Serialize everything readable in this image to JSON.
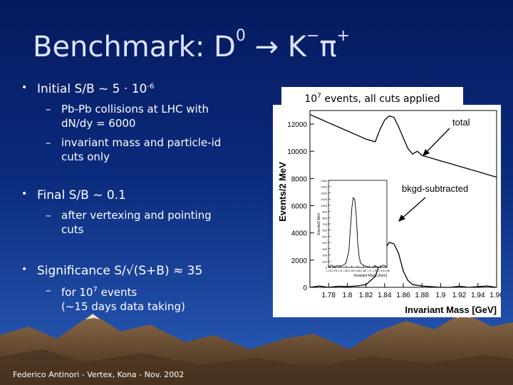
{
  "slide": {
    "title_prefix": "Benchmark: D",
    "title_sup": "0",
    "title_arrow": "→",
    "title_k": "K",
    "title_k_sup": "−",
    "title_pi": "π",
    "title_pi_sup": "+",
    "footer": "Federico Antinori - Vertex, Kona - Nov. 2002"
  },
  "bullets": [
    {
      "text": "Initial S/B ~ 5 · 10",
      "sup": "-6"
    },
    {
      "text": "Final S/B ~ 0.1"
    },
    {
      "text": "Significance S/√(S+B) ≈ 35"
    }
  ],
  "subbullets": {
    "b1_1_line1": "Pb-Pb collisions at LHC with",
    "b1_1_line2": "dN/dy = 6000",
    "b1_2_line1": "invariant mass and particle-id",
    "b1_2_line2": "cuts only",
    "b2_1_line1": "after vertexing and pointing",
    "b2_1_line2": "cuts",
    "b3_1_line1": "for 10",
    "b3_1_sup": "7",
    "b3_1_line1b": " events",
    "b3_1_line2": "(~15 days data taking)"
  },
  "figure": {
    "caption_pre": "10",
    "caption_sup": "7",
    "caption_post": " events, all cuts applied",
    "label_total": "total",
    "label_bkgd": "bkgd-subtracted"
  },
  "chart_data": {
    "type": "line",
    "xlabel": "Invariant Mass [GeV]",
    "ylabel": "Events/2 MeV",
    "xlim": [
      1.76,
      1.96
    ],
    "ylim": [
      0,
      13000
    ],
    "xticks": [
      "1.78",
      "1.8",
      "1.82",
      "1.84",
      "1.86",
      "1.88",
      "1.9",
      "1.92",
      "1.94",
      "1.96"
    ],
    "yticks": [
      "0",
      "2000",
      "4000",
      "6000",
      "8000",
      "10000",
      "12000"
    ],
    "series": [
      {
        "name": "total",
        "x": [
          1.76,
          1.77,
          1.78,
          1.79,
          1.8,
          1.81,
          1.82,
          1.83,
          1.835,
          1.84,
          1.845,
          1.85,
          1.855,
          1.86,
          1.865,
          1.87,
          1.875,
          1.88,
          1.89,
          1.9,
          1.91,
          1.92,
          1.93,
          1.94,
          1.95,
          1.96
        ],
        "y": [
          12700,
          12400,
          12100,
          11800,
          11500,
          11200,
          10900,
          10700,
          11600,
          12300,
          12600,
          12500,
          11800,
          11000,
          10200,
          9800,
          10000,
          9700,
          9500,
          9300,
          9100,
          8900,
          8700,
          8500,
          8300,
          8100
        ]
      },
      {
        "name": "bkgd-subtracted",
        "x": [
          1.76,
          1.77,
          1.78,
          1.79,
          1.8,
          1.81,
          1.82,
          1.83,
          1.835,
          1.84,
          1.845,
          1.85,
          1.855,
          1.86,
          1.865,
          1.87,
          1.88,
          1.89,
          1.9,
          1.91,
          1.92,
          1.93,
          1.94,
          1.95,
          1.96
        ],
        "y": [
          0,
          100,
          -50,
          80,
          50,
          100,
          200,
          800,
          1800,
          2800,
          3300,
          3200,
          2500,
          1200,
          500,
          200,
          100,
          50,
          0,
          -50,
          80,
          0,
          50,
          100,
          0
        ]
      }
    ],
    "inset": {
      "xlabel": "Invariant Mass [GeV]",
      "ylabel": "Events/2 MeV",
      "xticks": [
        "1.76",
        "1.78",
        "1.8",
        "1.82",
        "1.84",
        "1.86",
        "1.88",
        "1.9",
        "1.92",
        "1.94",
        "1.96"
      ],
      "yticks": [
        "0",
        "100",
        "200",
        "300",
        "400",
        "500",
        "600",
        "700",
        "800",
        "900",
        "1000",
        "1100",
        "1200",
        "1300",
        "1400"
      ]
    },
    "grid": false,
    "legend": "none"
  }
}
